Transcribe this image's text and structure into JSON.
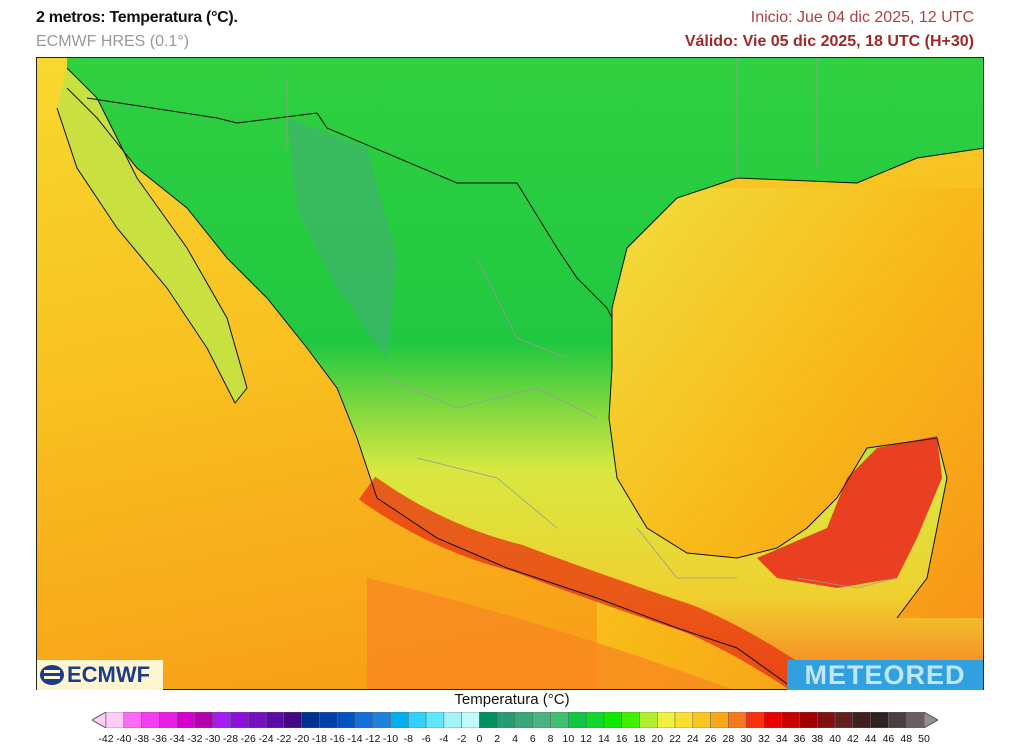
{
  "header": {
    "title": "2 metros: Temperatura (°C).",
    "model": "ECMWF HRES (0.1°)",
    "init": "Inicio: Jue 04 dic 2025, 12 UTC",
    "valid": "Válido: Vie 05 dic 2025, 18 UTC (H+30)"
  },
  "logos": {
    "left": "ECMWF",
    "right": "METEORED"
  },
  "colorbar": {
    "title": "Temperatura (°C)",
    "labels": [
      "-42",
      "-40",
      "-38",
      "-36",
      "-34",
      "-32",
      "-30",
      "-28",
      "-26",
      "-24",
      "-22",
      "-20",
      "-18",
      "-16",
      "-14",
      "-12",
      "-10",
      "-8",
      "-6",
      "-4",
      "-2",
      "0",
      "2",
      "4",
      "6",
      "8",
      "10",
      "12",
      "14",
      "16",
      "18",
      "20",
      "22",
      "24",
      "26",
      "28",
      "30",
      "32",
      "34",
      "36",
      "38",
      "40",
      "42",
      "44",
      "46",
      "48",
      "50"
    ],
    "colors": [
      "#ffccf8",
      "#fa6cf4",
      "#f43cf0",
      "#e820e4",
      "#d400d0",
      "#b400ac",
      "#a41ef4",
      "#8c10d8",
      "#7410c0",
      "#5c0ca4",
      "#440880",
      "#003090",
      "#0040a8",
      "#0054c0",
      "#1470d8",
      "#2080e0",
      "#00b0f0",
      "#30d0f8",
      "#60e8fa",
      "#a0f4fa",
      "#c0fafa",
      "#009060",
      "#2a9a70",
      "#38a878",
      "#48b480",
      "#40c070",
      "#10c840",
      "#10d830",
      "#10e800",
      "#40f000",
      "#b0f030",
      "#f0f040",
      "#f8e030",
      "#f8c820",
      "#f8a818",
      "#f87820",
      "#f83010",
      "#e80000",
      "#c80000",
      "#a00000",
      "#801010",
      "#602020",
      "#402020",
      "#302020",
      "#484040",
      "#686060"
    ],
    "under_color": "#ffccf8",
    "over_color": "#909090"
  }
}
